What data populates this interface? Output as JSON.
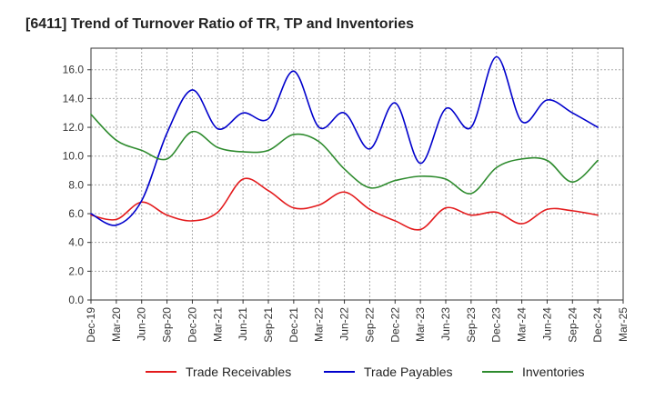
{
  "chart_data": {
    "type": "line",
    "title": "[6411]  Trend of Turnover Ratio of TR, TP and Inventories",
    "xlabel": "",
    "ylabel": "",
    "ylim": [
      0,
      17.5
    ],
    "yticks": [
      "0.0",
      "2.0",
      "4.0",
      "6.0",
      "8.0",
      "10.0",
      "12.0",
      "14.0",
      "16.0"
    ],
    "ytick_values": [
      0,
      2,
      4,
      6,
      8,
      10,
      12,
      14,
      16
    ],
    "x_tick_labels": [
      "Dec-19",
      "Mar-20",
      "Jun-20",
      "Sep-20",
      "Dec-20",
      "Mar-21",
      "Jun-21",
      "Sep-21",
      "Dec-21",
      "Mar-22",
      "Jun-22",
      "Sep-22",
      "Dec-22",
      "Mar-23",
      "Jun-23",
      "Sep-23",
      "Dec-23",
      "Mar-24",
      "Jun-24",
      "Sep-24",
      "Dec-24",
      "Mar-25"
    ],
    "x": [
      "Dec-19",
      "Mar-20",
      "Jun-20",
      "Sep-20",
      "Dec-20",
      "Mar-21",
      "Jun-21",
      "Sep-21",
      "Dec-21",
      "Mar-22",
      "Jun-22",
      "Sep-22",
      "Dec-22",
      "Mar-23",
      "Jun-23",
      "Sep-23",
      "Dec-23",
      "Mar-24",
      "Jun-24",
      "Sep-24",
      "Dec-24"
    ],
    "grid": true,
    "legend_position": "bottom",
    "series": [
      {
        "name": "Trade Receivables",
        "color": "#e31a1c",
        "values": [
          5.9,
          5.6,
          6.8,
          5.9,
          5.5,
          6.1,
          8.4,
          7.6,
          6.4,
          6.6,
          7.5,
          6.3,
          5.5,
          4.9,
          6.4,
          5.9,
          6.1,
          5.3,
          6.3,
          6.2,
          5.9
        ]
      },
      {
        "name": "Trade Payables",
        "color": "#0000cc",
        "values": [
          6.0,
          5.2,
          6.9,
          11.6,
          14.6,
          11.9,
          13.0,
          12.6,
          15.9,
          12.0,
          13.0,
          10.5,
          13.7,
          9.5,
          13.3,
          12.0,
          16.9,
          12.4,
          13.9,
          13.0,
          12.0
        ]
      },
      {
        "name": "Inventories",
        "color": "#2e8b2e",
        "values": [
          12.9,
          11.1,
          10.4,
          9.8,
          11.7,
          10.6,
          10.3,
          10.4,
          11.5,
          11.0,
          9.1,
          7.8,
          8.3,
          8.6,
          8.4,
          7.4,
          9.2,
          9.8,
          9.7,
          8.2,
          9.7
        ]
      }
    ]
  }
}
